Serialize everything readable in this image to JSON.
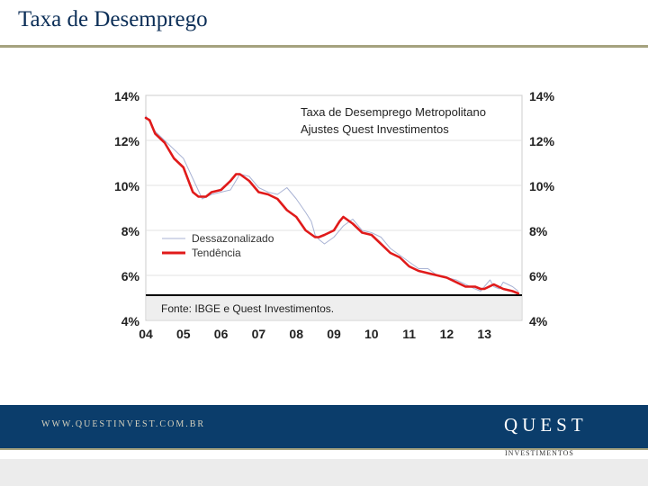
{
  "slide": {
    "title": "Taxa de Desemprego"
  },
  "footer": {
    "url": "WWW.QUESTINVEST.COM.BR",
    "brand": "QUEST",
    "brand_sub": "INVESTIMENTOS"
  },
  "colors": {
    "title": "#0b2e57",
    "accent_rule": "#a5a27e",
    "footer_band": "#0b3d6b",
    "trend_line": "#e01a1a",
    "sa_line": "#a9b3d4"
  },
  "chart_data": {
    "type": "line",
    "title": "Taxa de Desemprego Metropolitano\nAjustes Quest Investimentos",
    "title_lines": [
      "Taxa de Desemprego Metropolitano",
      "Ajustes Quest Investimentos"
    ],
    "source": "Fonte: IBGE e Quest Investimentos.",
    "ylim": [
      4,
      14
    ],
    "yticks": [
      "4%",
      "6%",
      "8%",
      "10%",
      "12%",
      "14%"
    ],
    "ytick_values": [
      4,
      6,
      8,
      10,
      12,
      14
    ],
    "xlim": [
      2004,
      2014
    ],
    "xticks": [
      "04",
      "05",
      "06",
      "07",
      "08",
      "09",
      "10",
      "11",
      "12",
      "13"
    ],
    "xtick_values": [
      2004,
      2005,
      2006,
      2007,
      2008,
      2009,
      2010,
      2011,
      2012,
      2013
    ],
    "grid": true,
    "legend_position": "left",
    "series": [
      {
        "name": "Dessazonalizado",
        "color": "#a9b3d4",
        "x": [
          2004.0,
          2004.25,
          2004.5,
          2004.75,
          2005.0,
          2005.25,
          2005.5,
          2005.75,
          2006.0,
          2006.25,
          2006.5,
          2006.75,
          2007.0,
          2007.25,
          2007.5,
          2007.75,
          2008.0,
          2008.25,
          2008.4,
          2008.5,
          2008.6,
          2008.75,
          2009.0,
          2009.25,
          2009.5,
          2009.75,
          2010.0,
          2010.25,
          2010.5,
          2010.75,
          2011.0,
          2011.25,
          2011.5,
          2011.75,
          2012.0,
          2012.25,
          2012.5,
          2012.75,
          2012.9,
          2013.0,
          2013.15,
          2013.25,
          2013.4,
          2013.5,
          2013.75,
          2013.9
        ],
        "y": [
          13.1,
          12.4,
          12.0,
          11.6,
          11.2,
          10.3,
          9.4,
          9.6,
          9.7,
          9.8,
          10.5,
          10.4,
          9.9,
          9.7,
          9.6,
          9.9,
          9.4,
          8.8,
          8.4,
          7.8,
          7.6,
          7.4,
          7.7,
          8.2,
          8.5,
          8.0,
          7.9,
          7.7,
          7.2,
          6.9,
          6.6,
          6.3,
          6.3,
          6.0,
          5.9,
          5.8,
          5.6,
          5.4,
          5.3,
          5.5,
          5.8,
          5.5,
          5.4,
          5.7,
          5.5,
          5.3
        ]
      },
      {
        "name": "Tendência",
        "color": "#e01a1a",
        "x": [
          2004.0,
          2004.1,
          2004.25,
          2004.5,
          2004.75,
          2005.0,
          2005.25,
          2005.4,
          2005.6,
          2005.75,
          2006.0,
          2006.25,
          2006.4,
          2006.5,
          2006.75,
          2007.0,
          2007.25,
          2007.5,
          2007.75,
          2008.0,
          2008.25,
          2008.5,
          2008.6,
          2008.75,
          2009.0,
          2009.15,
          2009.25,
          2009.5,
          2009.75,
          2010.0,
          2010.25,
          2010.5,
          2010.75,
          2011.0,
          2011.25,
          2011.5,
          2011.75,
          2012.0,
          2012.25,
          2012.5,
          2012.75,
          2012.9,
          2013.0,
          2013.25,
          2013.5,
          2013.75,
          2013.9
        ],
        "y": [
          13.0,
          12.9,
          12.3,
          11.9,
          11.2,
          10.8,
          9.7,
          9.5,
          9.5,
          9.7,
          9.8,
          10.2,
          10.5,
          10.5,
          10.2,
          9.7,
          9.6,
          9.4,
          8.9,
          8.6,
          8.0,
          7.7,
          7.7,
          7.8,
          8.0,
          8.4,
          8.6,
          8.3,
          7.9,
          7.8,
          7.4,
          7.0,
          6.8,
          6.4,
          6.2,
          6.1,
          6.0,
          5.9,
          5.7,
          5.5,
          5.5,
          5.4,
          5.4,
          5.6,
          5.4,
          5.3,
          5.2
        ]
      }
    ]
  }
}
